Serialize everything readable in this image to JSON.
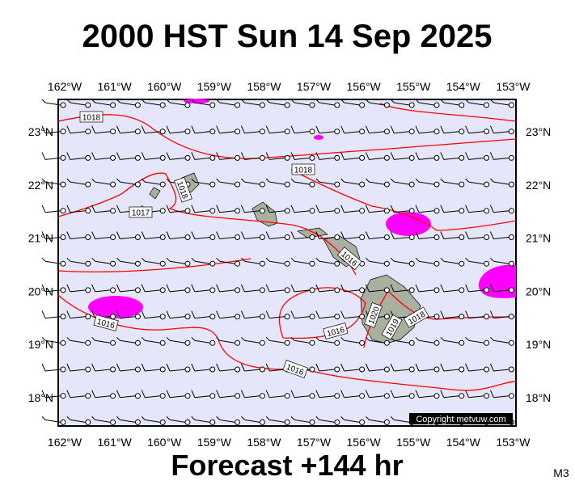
{
  "header": {
    "title": "2000 HST Sun 14 Sep 2025"
  },
  "map": {
    "lon_labels": [
      "162°W",
      "161°W",
      "160°W",
      "159°W",
      "158°W",
      "157°W",
      "156°W",
      "155°W",
      "154°W",
      "153°W"
    ],
    "lat_labels": [
      "23°N",
      "22°N",
      "21°N",
      "20°N",
      "19°N",
      "18°N"
    ],
    "isobar_labels": [
      "1018",
      "1018",
      "1018",
      "1017",
      "1016",
      "1016",
      "1016",
      "1016",
      "1020",
      "1019",
      "1018"
    ],
    "copyright": "Copyright metvuw.com"
  },
  "footer": {
    "forecast": "Forecast +144 hr",
    "corner": "M3"
  }
}
